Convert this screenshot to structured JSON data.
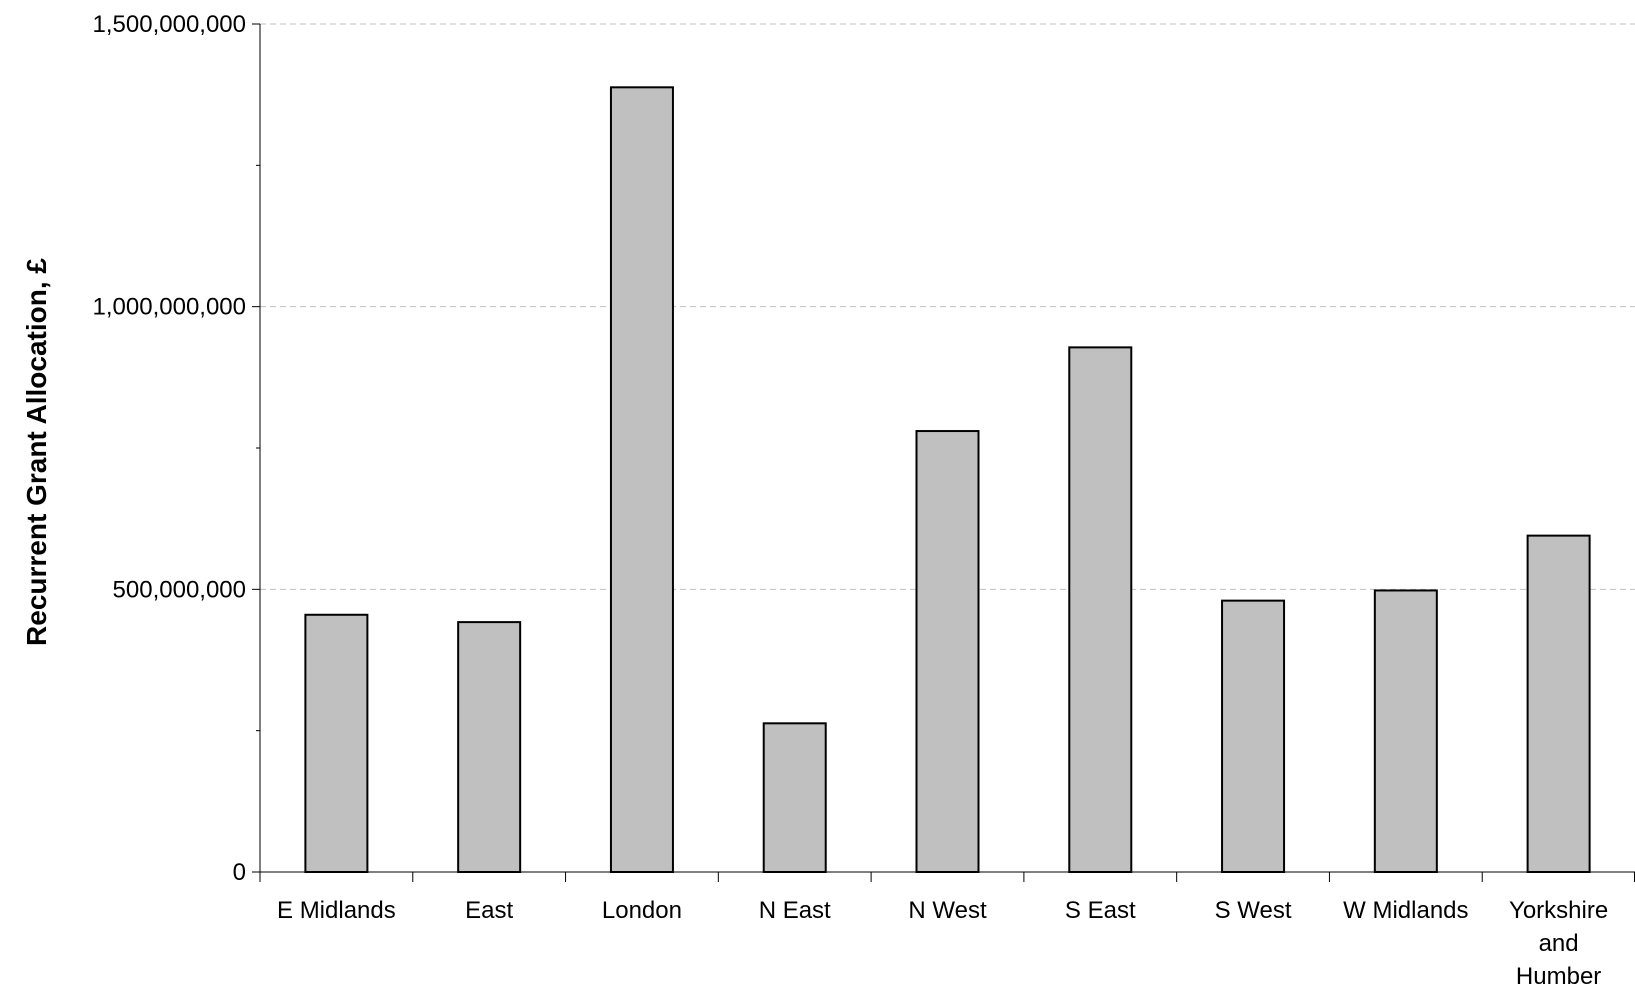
{
  "chart_data": {
    "type": "bar",
    "title": "",
    "xlabel": "",
    "ylabel": "Recurrent Grant Allocation, £",
    "categories": [
      "E Midlands",
      "East",
      "London",
      "N East",
      "N West",
      "S East",
      "S West",
      "W Midlands",
      "Yorkshire and Humber"
    ],
    "category_label_lines": [
      [
        "E Midlands"
      ],
      [
        "East"
      ],
      [
        "London"
      ],
      [
        "N East"
      ],
      [
        "N West"
      ],
      [
        "S East"
      ],
      [
        "S West"
      ],
      [
        "W Midlands"
      ],
      [
        "Yorkshire",
        "and",
        "Humber"
      ]
    ],
    "values": [
      455000000,
      442000000,
      1388000000,
      263000000,
      780000000,
      928000000,
      480000000,
      498000000,
      595000000
    ],
    "ylim": [
      0,
      1500000000
    ],
    "yticks": [
      0,
      500000000,
      1000000000,
      1500000000
    ],
    "ytick_labels": [
      "0",
      "500,000,000",
      "1,000,000,000",
      "1,500,000,000"
    ],
    "grid": true,
    "legend": "none",
    "colors": {
      "bar_fill": "#c0c0c0",
      "bar_stroke": "#000000",
      "grid": "#c0c0c0",
      "axis": "#000000"
    }
  }
}
